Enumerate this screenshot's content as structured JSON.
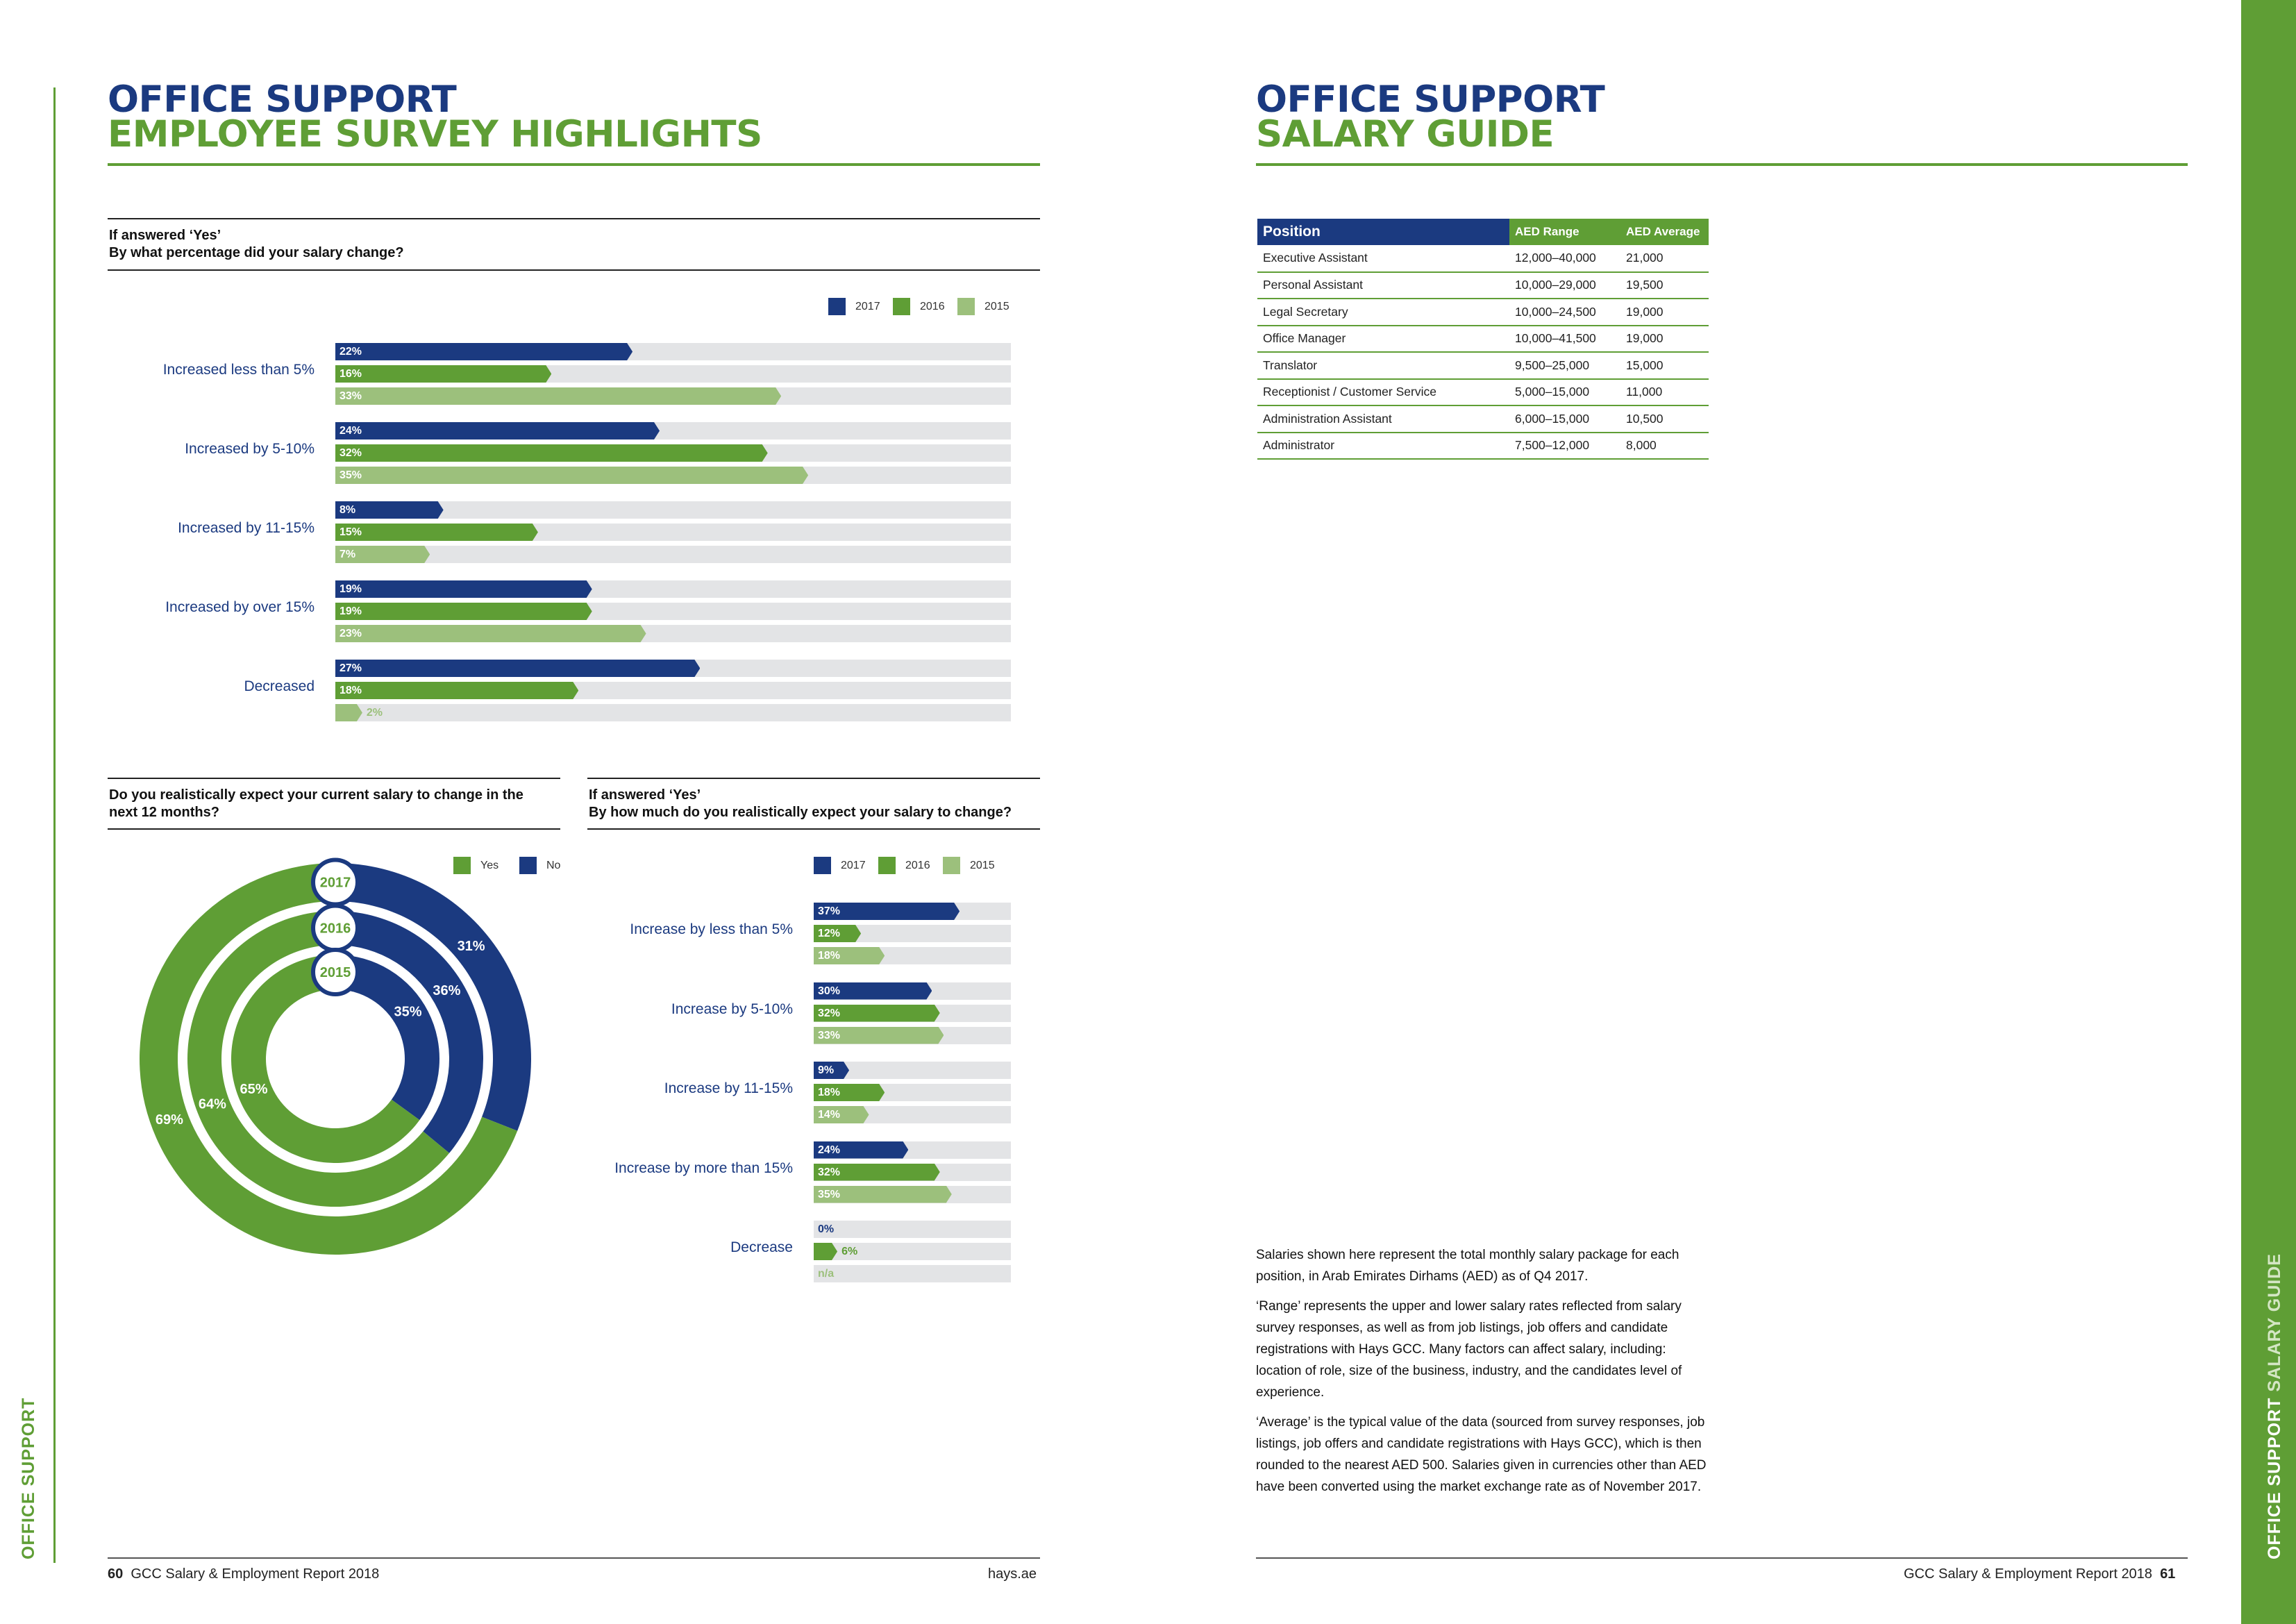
{
  "left_page": {
    "title_line1": "OFFICE SUPPORT",
    "title_line2": "EMPLOYEE SURVEY HIGHLIGHTS",
    "side_label": "OFFICE SUPPORT",
    "footer_page": "60",
    "footer_title": "GCC Salary & Employment Report 2018",
    "footer_url": "hays.ae"
  },
  "right_page": {
    "title_line1": "OFFICE SUPPORT",
    "title_line2": "SALARY GUIDE",
    "side_label_a": "OFFICE SUPPORT",
    "side_label_b": "SALARY GUIDE",
    "footer_title": "GCC Salary & Employment Report 2018",
    "footer_page": "61",
    "notes": [
      "Salaries shown here represent the total monthly salary package for each position, in Arab Emirates Dirhams (AED) as of Q4 2017.",
      "‘Range’ represents the upper and lower salary rates reflected from salary survey responses, as well as from job listings, job offers and candidate registrations with Hays GCC. Many factors can affect salary, including: location of role, size of the business, industry, and the candidates level of experience.",
      "‘Average’ is the typical value of the data (sourced from survey responses, job listings, job offers and candidate registrations with Hays GCC), which is then rounded to the nearest AED 500. Salaries given in currencies other than AED have been converted using the market exchange rate as of November 2017."
    ]
  },
  "salary_table": {
    "headers": [
      "Position",
      "AED Range",
      "AED Average"
    ],
    "rows": [
      [
        "Executive Assistant",
        "12,000–40,000",
        "21,000"
      ],
      [
        "Personal Assistant",
        "10,000–29,000",
        "19,500"
      ],
      [
        "Legal Secretary",
        "10,000–24,500",
        "19,000"
      ],
      [
        "Office Manager",
        "10,000–41,500",
        "19,000"
      ],
      [
        "Translator",
        "9,500–25,000",
        "15,000"
      ],
      [
        "Receptionist / Customer Service",
        "5,000–15,000",
        "11,000"
      ],
      [
        "Administration Assistant",
        "6,000–15,000",
        "10,500"
      ],
      [
        "Administrator",
        "7,500–12,000",
        "8,000"
      ]
    ]
  },
  "colors": {
    "navy": "#1b3a80",
    "green": "#5f9e35",
    "light_green": "#9cc07c",
    "track": "#e3e4e6"
  },
  "chart_data": [
    {
      "type": "bar",
      "orientation": "horizontal",
      "title_line1": "If answered ‘Yes’",
      "title_line2": "By what percentage did your salary change?",
      "legend": [
        "2017",
        "2016",
        "2015"
      ],
      "xlim": [
        0,
        50
      ],
      "categories": [
        "Increased less than 5%",
        "Increased by 5-10%",
        "Increased by 11-15%",
        "Increased by over 15%",
        "Decreased"
      ],
      "series": [
        {
          "name": "2017",
          "values": [
            22,
            24,
            8,
            19,
            27
          ],
          "labels": [
            "22%",
            "24%",
            "8%",
            "19%",
            "27%"
          ]
        },
        {
          "name": "2016",
          "values": [
            16,
            32,
            15,
            19,
            18
          ],
          "labels": [
            "16%",
            "32%",
            "15%",
            "19%",
            "18%"
          ]
        },
        {
          "name": "2015",
          "values": [
            33,
            35,
            7,
            23,
            2
          ],
          "labels": [
            "33%",
            "35%",
            "7%",
            "23%",
            "2%"
          ]
        }
      ]
    },
    {
      "type": "pie",
      "variant": "nested-donut",
      "title_line1": "Do you realistically expect your current salary to change in the",
      "title_line2": "next 12 months?",
      "legend": [
        "Yes",
        "No"
      ],
      "rings": [
        {
          "year": "2017",
          "yes": 69,
          "no": 31,
          "yes_label": "69%",
          "no_label": "31%"
        },
        {
          "year": "2016",
          "yes": 64,
          "no": 36,
          "yes_label": "64%",
          "no_label": "36%"
        },
        {
          "year": "2015",
          "yes": 65,
          "no": 35,
          "yes_label": "65%",
          "no_label": "35%"
        }
      ]
    },
    {
      "type": "bar",
      "orientation": "horizontal",
      "title_line1": "If answered ‘Yes’",
      "title_line2": "By how much do you realistically expect your salary to change?",
      "legend": [
        "2017",
        "2016",
        "2015"
      ],
      "xlim": [
        0,
        50
      ],
      "categories": [
        "Increase by less than 5%",
        "Increase by 5-10%",
        "Increase by 11-15%",
        "Increase by more than 15%",
        "Decrease"
      ],
      "series": [
        {
          "name": "2017",
          "values": [
            37,
            30,
            9,
            24,
            0
          ],
          "labels": [
            "37%",
            "30%",
            "9%",
            "24%",
            "0%"
          ]
        },
        {
          "name": "2016",
          "values": [
            12,
            32,
            18,
            32,
            6
          ],
          "labels": [
            "12%",
            "32%",
            "18%",
            "32%",
            "6%"
          ]
        },
        {
          "name": "2015",
          "values": [
            18,
            33,
            14,
            35,
            null
          ],
          "labels": [
            "18%",
            "33%",
            "14%",
            "35%",
            "n/a"
          ]
        }
      ]
    }
  ]
}
